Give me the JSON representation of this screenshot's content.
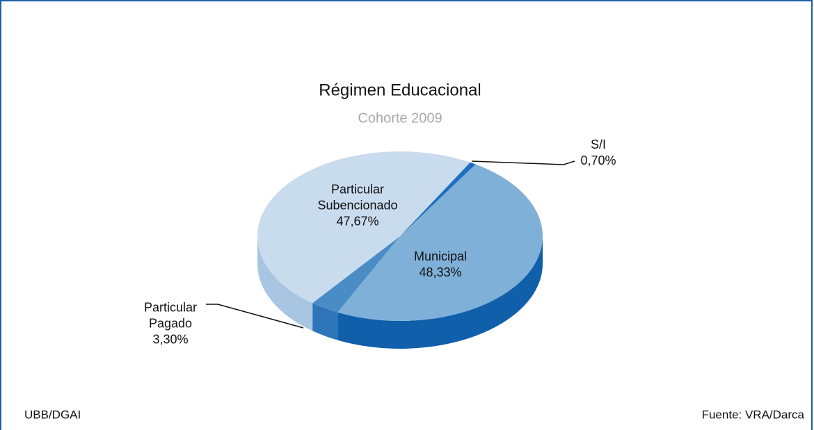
{
  "chart_data": {
    "type": "pie3d",
    "title": "Régimen Educacional",
    "subtitle": "Cohorte 2009",
    "categories": [
      "Municipal",
      "Particular Pagado",
      "Particular Subencionado",
      "S/I"
    ],
    "values": [
      48.33,
      3.3,
      47.67,
      0.7
    ],
    "value_labels": [
      "48,33%",
      "3,30%",
      "47,67%",
      "0,70%"
    ],
    "colors": [
      "#7fb0d8",
      "#4a8cc6",
      "#c9dcee",
      "#1f6fbf"
    ],
    "side_colors": [
      "#0f5faa",
      "#2e74b8",
      "#a8c6e2",
      "#1a5aa0"
    ],
    "footer_left": "UBB/DGAI",
    "footer_right": "Fuente: VRA/Darca"
  }
}
